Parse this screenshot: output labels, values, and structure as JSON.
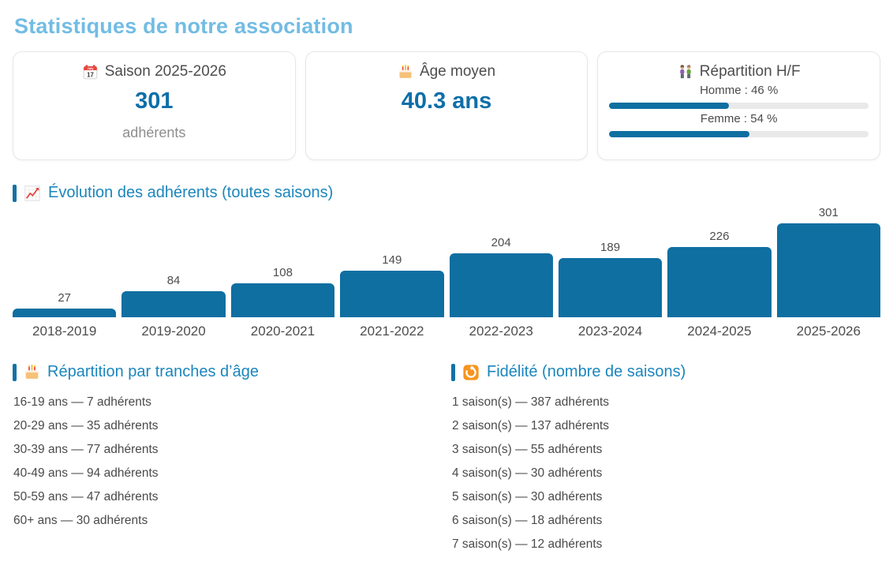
{
  "page": {
    "title": "Statistiques de notre association"
  },
  "cards": {
    "season": {
      "icon": "calendar-icon",
      "title": "Saison 2025-2026",
      "value": "301",
      "unit": "adhérents"
    },
    "age": {
      "icon": "cake-icon",
      "title": "Âge moyen",
      "value": "40.3 ans"
    },
    "gender": {
      "icon": "people-icon",
      "title": "Répartition H/F",
      "rows": [
        {
          "label": "Homme : 46 %",
          "pct": 46
        },
        {
          "label": "Femme : 54 %",
          "pct": 54
        }
      ],
      "fill_color": "#0f6fa1",
      "track_color": "#e9e9e9"
    }
  },
  "evolution_section": {
    "icon": "chart-up-icon",
    "title": "Évolution des adhérents (toutes saisons)"
  },
  "chart_data": {
    "type": "bar",
    "title": "Évolution des adhérents (toutes saisons)",
    "categories": [
      "2018-2019",
      "2019-2020",
      "2020-2021",
      "2021-2022",
      "2022-2023",
      "2023-2024",
      "2024-2025",
      "2025-2026"
    ],
    "values": [
      27,
      84,
      108,
      149,
      204,
      189,
      226,
      301
    ],
    "xlabel": "",
    "ylabel": "",
    "ylim": [
      0,
      301
    ],
    "grid": false,
    "legend": false,
    "value_labels": true,
    "bar_color": "#0f6fa1"
  },
  "age_section": {
    "icon": "cake-icon",
    "title": "Répartition par tranches d’âge",
    "separator": "—",
    "suffix": "adhérents",
    "items": [
      {
        "label": "16-19 ans",
        "count": 7
      },
      {
        "label": "20-29 ans",
        "count": 35
      },
      {
        "label": "30-39 ans",
        "count": 77
      },
      {
        "label": "40-49 ans",
        "count": 94
      },
      {
        "label": "50-59 ans",
        "count": 47
      },
      {
        "label": "60+ ans",
        "count": 30
      }
    ]
  },
  "fidelity_section": {
    "icon": "repeat-icon",
    "title": "Fidélité (nombre de saisons)",
    "separator": "—",
    "suffix": "adhérents",
    "items": [
      {
        "label": "1 saison(s)",
        "count": 387
      },
      {
        "label": "2 saison(s)",
        "count": 137
      },
      {
        "label": "3 saison(s)",
        "count": 55
      },
      {
        "label": "4 saison(s)",
        "count": 30
      },
      {
        "label": "5 saison(s)",
        "count": 30
      },
      {
        "label": "6 saison(s)",
        "count": 18
      },
      {
        "label": "7 saison(s)",
        "count": 12
      }
    ]
  },
  "colors": {
    "title_blue": "#72bce4",
    "section_header_blue": "#1b86bd",
    "accent_bar_blue": "#1472a5",
    "value_blue": "#0d6fa8",
    "bar_blue": "#0f6fa1",
    "text_gray": "#4a4a4a",
    "muted_gray": "#8e8e8e"
  }
}
